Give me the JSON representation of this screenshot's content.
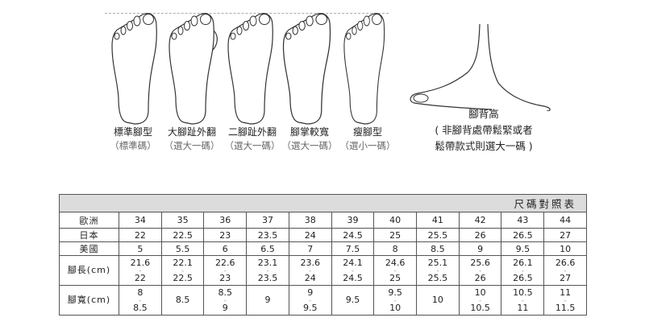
{
  "foot_types": [
    {
      "name": "標準腳型",
      "advice": "（標準碼）"
    },
    {
      "name": "大腳趾外翻",
      "advice": "（選大一碼）"
    },
    {
      "name": "二腳趾外翻",
      "advice": "（選大一碼）"
    },
    {
      "name": "腳掌較寬",
      "advice": "（選大一碼）"
    },
    {
      "name": "瘦腳型",
      "advice": "（選小一碼）"
    }
  ],
  "instep": {
    "title": "腳背高",
    "note_line1": "( 非腳背處帶鬆緊或者",
    "note_line2": "鬆帶款式則選大一碼 )"
  },
  "size_table": {
    "title": "尺碼對照表",
    "rows": [
      {
        "label": "歐洲",
        "values": [
          "34",
          "35",
          "36",
          "37",
          "38",
          "39",
          "40",
          "41",
          "42",
          "43",
          "44"
        ]
      },
      {
        "label": "日本",
        "values": [
          "22",
          "22.5",
          "23",
          "23.5",
          "24",
          "24.5",
          "25",
          "25.5",
          "26",
          "26.5",
          "27"
        ]
      },
      {
        "label": "美國",
        "values": [
          "5",
          "5.5",
          "6",
          "6.5",
          "7",
          "7.5",
          "8",
          "8.5",
          "9",
          "9.5",
          "10"
        ]
      },
      {
        "label": "腳長(cm)",
        "values": [
          [
            "21.6",
            "22"
          ],
          [
            "22.1",
            "22.5"
          ],
          [
            "22.6",
            "23"
          ],
          [
            "23.1",
            "23.5"
          ],
          [
            "23.6",
            "24"
          ],
          [
            "24.1",
            "24.5"
          ],
          [
            "24.6",
            "25"
          ],
          [
            "25.1",
            "25.5"
          ],
          [
            "25.6",
            "26"
          ],
          [
            "26.1",
            "26.5"
          ],
          [
            "26.6",
            "27"
          ]
        ]
      },
      {
        "label": "腳寬(cm)",
        "values": [
          [
            "8",
            "8.5"
          ],
          [
            "8.5"
          ],
          [
            "8.5",
            "9"
          ],
          [
            "9"
          ],
          [
            "9",
            "9.5"
          ],
          [
            "9.5"
          ],
          [
            "9.5",
            "10"
          ],
          [
            "10"
          ],
          [
            "10",
            "10.5"
          ],
          [
            "10.5",
            "11"
          ],
          [
            "11",
            "11.5"
          ]
        ]
      }
    ]
  }
}
